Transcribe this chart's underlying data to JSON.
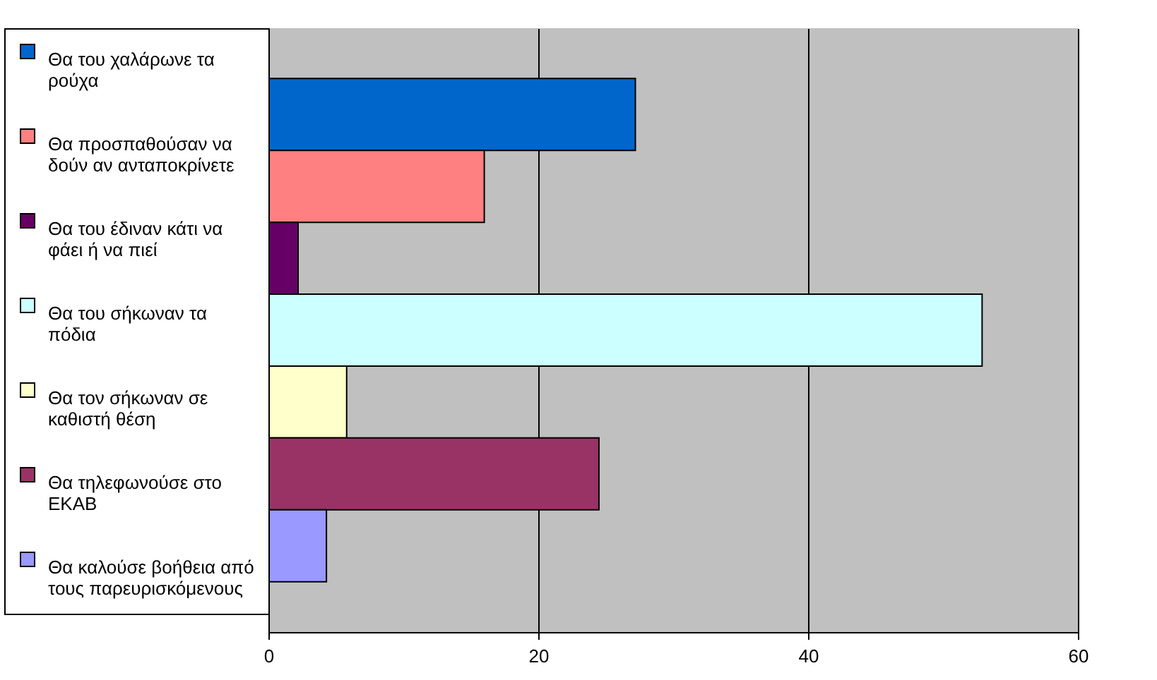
{
  "chart_data": {
    "type": "bar",
    "orientation": "horizontal",
    "categories": [
      null
    ],
    "series": [
      {
        "name": "Θα του χαλάρωνε τα ρούχα",
        "color": "#0066cc",
        "values": [
          27.2
        ]
      },
      {
        "name": "Θα προσπαθούσαν να δούν αν ανταποκρίνετε",
        "color": "#ff8080",
        "values": [
          16.0
        ]
      },
      {
        "name": "Θα του έδιναν κάτι να φάει ή να πιεί",
        "color": "#660066",
        "values": [
          2.2
        ]
      },
      {
        "name": "Θα του σήκωναν τα πόδια",
        "color": "#ccffff",
        "values": [
          52.9
        ]
      },
      {
        "name": "Θα τον σήκωναν σε καθιστή θέση",
        "color": "#ffffcc",
        "values": [
          5.8
        ]
      },
      {
        "name": "Θα τηλεφωνούσε στο ΕΚΑΒ",
        "color": "#993366",
        "values": [
          24.5
        ]
      },
      {
        "name": "Θα καλούσε βοήθεια από τους παρευρισκόμενους",
        "color": "#9999ff",
        "values": [
          4.3
        ]
      }
    ],
    "xlim": [
      0,
      60
    ],
    "xticks": [
      0,
      20,
      40,
      60
    ],
    "grid": "x",
    "legend": "left"
  }
}
